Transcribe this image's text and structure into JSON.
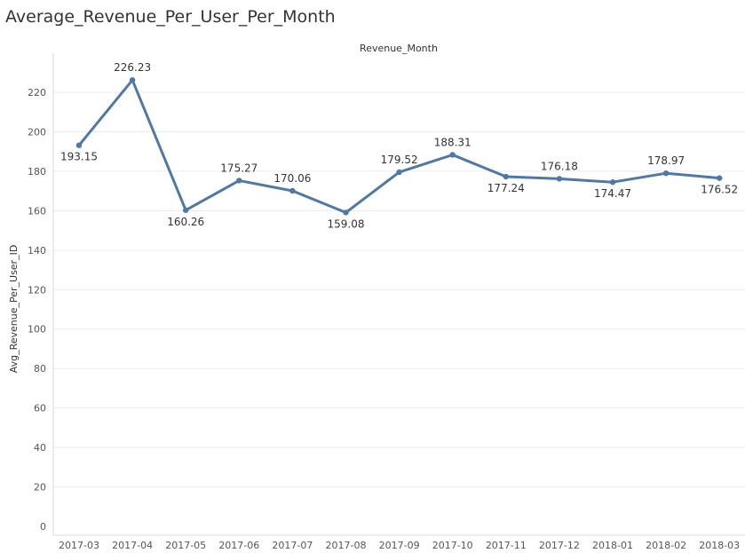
{
  "page": {
    "title": "Average_Revenue_Per_User_Per_Month"
  },
  "chart_data": {
    "type": "line",
    "title": "Average_Revenue_Per_User_Per_Month",
    "xlabel": "Revenue_Month",
    "ylabel": "Avg_Revenue_Per_User_ID",
    "categories": [
      "2017-03",
      "2017-04",
      "2017-05",
      "2017-06",
      "2017-07",
      "2017-08",
      "2017-09",
      "2017-10",
      "2017-11",
      "2017-12",
      "2018-01",
      "2018-02",
      "2018-03"
    ],
    "series": [
      {
        "values": [
          193.15,
          226.23,
          160.26,
          175.27,
          170.06,
          159.08,
          179.52,
          188.31,
          177.24,
          176.18,
          174.47,
          178.97,
          176.52
        ],
        "labels": [
          "193.15",
          "226.23",
          "160.26",
          "175.27",
          "170.06",
          "159.08",
          "179.52",
          "188.31",
          "177.24",
          "176.18",
          "174.47",
          "178.97",
          "176.52"
        ],
        "label_side": [
          "below",
          "above",
          "below",
          "above",
          "above",
          "below",
          "above",
          "above",
          "below",
          "above",
          "below",
          "above",
          "below"
        ],
        "color": "#4e79a7"
      }
    ],
    "yticks": [
      0,
      20,
      40,
      60,
      80,
      100,
      120,
      140,
      160,
      180,
      200,
      220
    ],
    "ytick_labels": [
      "0",
      "20",
      "40",
      "60",
      "80",
      "100",
      "120",
      "140",
      "160",
      "180",
      "200",
      "220"
    ],
    "ylim": [
      0,
      235
    ],
    "grid": true,
    "grid_color": "#ececec",
    "axis_color": "#d9d9d9",
    "legend": "none"
  }
}
